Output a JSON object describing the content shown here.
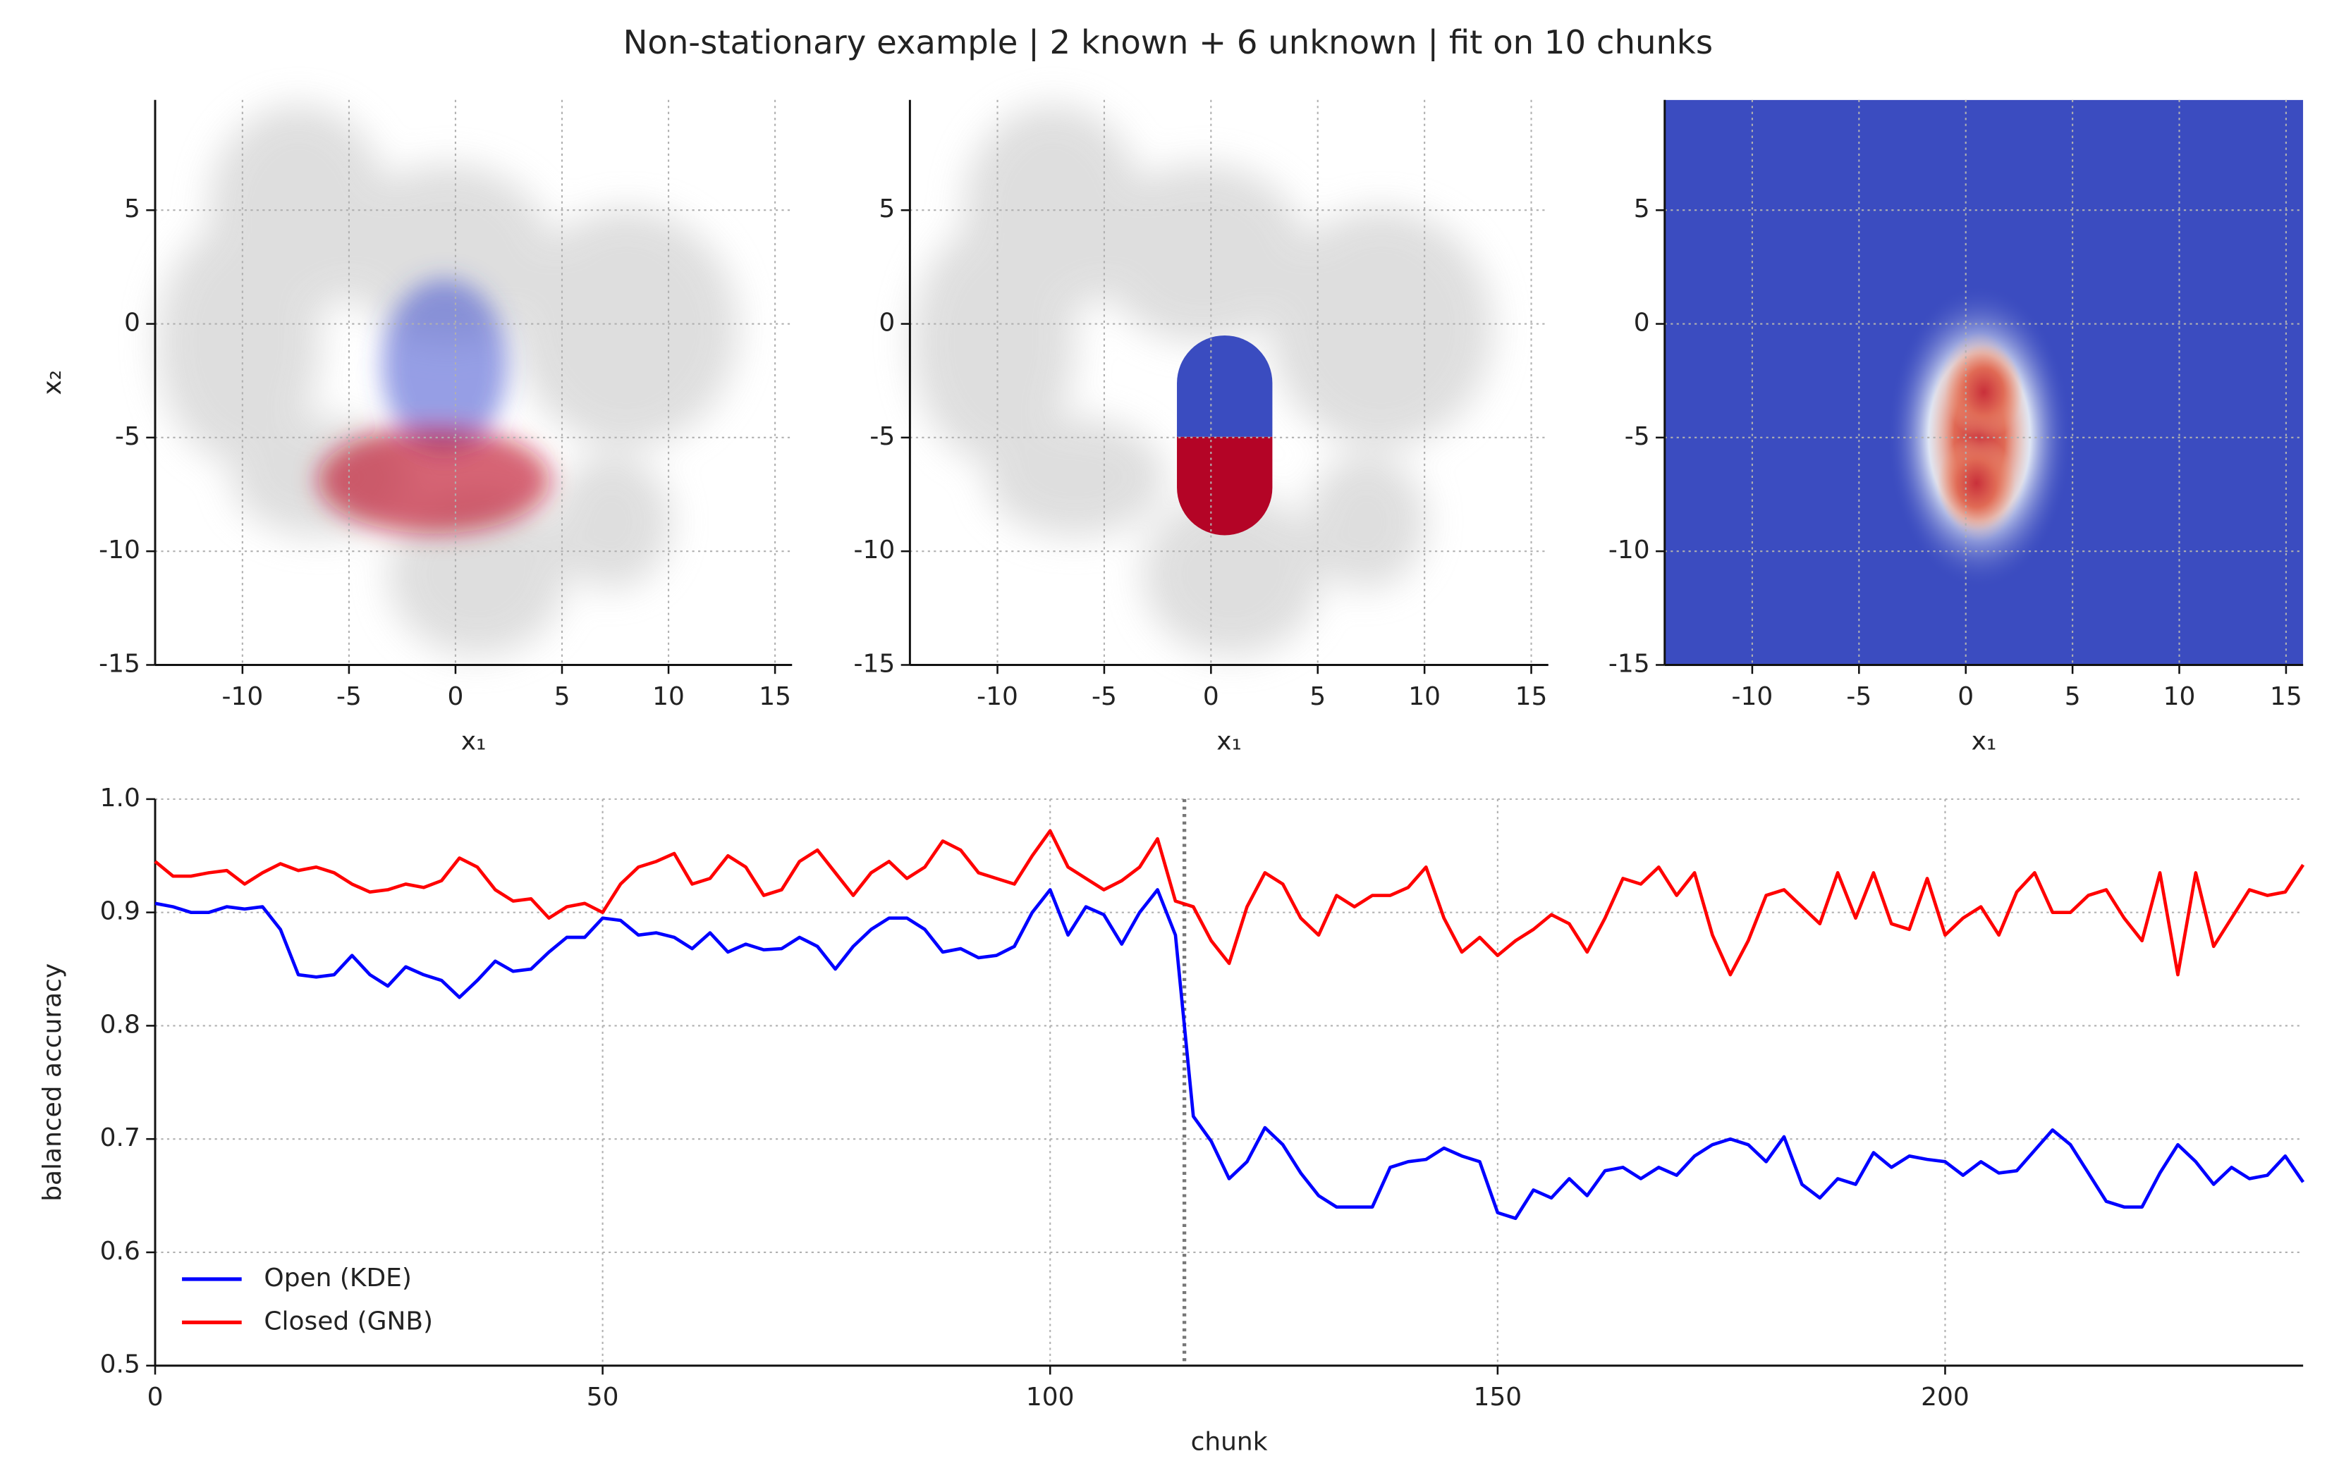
{
  "title": "Non-stationary example | 2 known + 6 unknown | fit on 10 chunks",
  "chart_data": [
    {
      "type": "scatter",
      "xlabel": "x₁",
      "ylabel": "x₂",
      "xlim": [
        -14.1,
        15.8
      ],
      "ylim": [
        -15,
        9.85
      ],
      "xticks": [
        -10,
        -5,
        0,
        5,
        10,
        15
      ],
      "yticks": [
        -15,
        -10,
        -5,
        0,
        5
      ],
      "grid": true
    },
    {
      "type": "scatter",
      "xlabel": "x₁",
      "xlim": [
        -14.1,
        15.8
      ],
      "ylim": [
        -15,
        9.85
      ],
      "xticks": [
        -10,
        -5,
        0,
        5,
        10,
        15
      ],
      "yticks": [
        -15,
        -10,
        -5,
        0,
        5
      ],
      "grid": true
    },
    {
      "type": "heatmap",
      "xlabel": "x₁",
      "xlim": [
        -14.1,
        15.8
      ],
      "ylim": [
        -15,
        9.85
      ],
      "xticks": [
        -10,
        -5,
        0,
        5,
        10,
        15
      ],
      "yticks": [
        -15,
        -10,
        -5,
        0,
        5
      ],
      "grid": true
    },
    {
      "type": "line",
      "xlabel": "chunk",
      "ylabel": "balanced accuracy",
      "xlim": [
        0,
        240
      ],
      "ylim": [
        0.5,
        1.0
      ],
      "xticks": [
        0,
        50,
        100,
        150,
        200
      ],
      "yticks": [
        0.5,
        0.6,
        0.7,
        0.8,
        0.9,
        {
          "value": 1.0,
          "label": "1.0"
        }
      ],
      "grid": true,
      "legend": "lower left",
      "vlines": [
        115
      ],
      "x": [
        0,
        2,
        4,
        6,
        8,
        10,
        12,
        14,
        16,
        18,
        20,
        22,
        24,
        26,
        28,
        30,
        32,
        34,
        36,
        38,
        40,
        42,
        44,
        46,
        48,
        50,
        52,
        54,
        56,
        58,
        60,
        62,
        64,
        66,
        68,
        70,
        72,
        74,
        76,
        78,
        80,
        82,
        84,
        86,
        88,
        90,
        92,
        94,
        96,
        98,
        100,
        102,
        104,
        106,
        108,
        110,
        112,
        114,
        116,
        118,
        120,
        122,
        124,
        126,
        128,
        130,
        132,
        134,
        136,
        138,
        140,
        142,
        144,
        146,
        148,
        150,
        152,
        154,
        156,
        158,
        160,
        162,
        164,
        166,
        168,
        170,
        172,
        174,
        176,
        178,
        180,
        182,
        184,
        186,
        188,
        190,
        192,
        194,
        196,
        198,
        200,
        202,
        204,
        206,
        208,
        210,
        212,
        214,
        216,
        218,
        220,
        222,
        224,
        226,
        228,
        230,
        232,
        234,
        236,
        238,
        240
      ],
      "series": [
        {
          "name": "Open (KDE)",
          "color": "#0000ff",
          "values": [
            0.908,
            0.905,
            0.9,
            0.9,
            0.905,
            0.903,
            0.905,
            0.885,
            0.845,
            0.843,
            0.845,
            0.862,
            0.845,
            0.835,
            0.852,
            0.845,
            0.84,
            0.825,
            0.84,
            0.857,
            0.848,
            0.85,
            0.865,
            0.878,
            0.878,
            0.895,
            0.893,
            0.88,
            0.882,
            0.878,
            0.868,
            0.882,
            0.865,
            0.872,
            0.867,
            0.868,
            0.878,
            0.87,
            0.85,
            0.87,
            0.885,
            0.895,
            0.895,
            0.885,
            0.865,
            0.868,
            0.86,
            0.862,
            0.87,
            0.9,
            0.92,
            0.88,
            0.905,
            0.898,
            0.872,
            0.9,
            0.92,
            0.88,
            0.72,
            0.698,
            0.665,
            0.68,
            0.71,
            0.695,
            0.67,
            0.65,
            0.64,
            0.64,
            0.64,
            0.675,
            0.68,
            0.682,
            0.692,
            0.685,
            0.68,
            0.635,
            0.63,
            0.655,
            0.648,
            0.665,
            0.65,
            0.672,
            0.675,
            0.665,
            0.675,
            0.668,
            0.685,
            0.695,
            0.7,
            0.695,
            0.68,
            0.702,
            0.66,
            0.648,
            0.665,
            0.66,
            0.688,
            0.675,
            0.685,
            0.682,
            0.68,
            0.668,
            0.68,
            0.67,
            0.672,
            0.69,
            0.708,
            0.695,
            0.67,
            0.645,
            0.64,
            0.64,
            0.67,
            0.695,
            0.68,
            0.66,
            0.675,
            0.665,
            0.668,
            0.685,
            0.662
          ]
        },
        {
          "name": "Closed (GNB)",
          "color": "#ff0000",
          "values": [
            0.945,
            0.932,
            0.932,
            0.935,
            0.937,
            0.925,
            0.935,
            0.943,
            0.937,
            0.94,
            0.935,
            0.925,
            0.918,
            0.92,
            0.925,
            0.922,
            0.928,
            0.948,
            0.94,
            0.92,
            0.91,
            0.912,
            0.895,
            0.905,
            0.908,
            0.9,
            0.925,
            0.94,
            0.945,
            0.952,
            0.925,
            0.93,
            0.95,
            0.94,
            0.915,
            0.92,
            0.945,
            0.955,
            0.935,
            0.915,
            0.935,
            0.945,
            0.93,
            0.94,
            0.963,
            0.955,
            0.935,
            0.93,
            0.925,
            0.95,
            0.972,
            0.94,
            0.93,
            0.92,
            0.928,
            0.94,
            0.965,
            0.91,
            0.905,
            0.875,
            0.855,
            0.905,
            0.935,
            0.925,
            0.895,
            0.88,
            0.915,
            0.905,
            0.915,
            0.915,
            0.922,
            0.94,
            0.895,
            0.865,
            0.878,
            0.862,
            0.875,
            0.885,
            0.898,
            0.89,
            0.865,
            0.895,
            0.93,
            0.925,
            0.94,
            0.915,
            0.935,
            0.88,
            0.845,
            0.875,
            0.915,
            0.92,
            0.905,
            0.89,
            0.935,
            0.895,
            0.935,
            0.89,
            0.885,
            0.93,
            0.88,
            0.895,
            0.905,
            0.88,
            0.918,
            0.935,
            0.9,
            0.9,
            0.915,
            0.92,
            0.895,
            0.875,
            0.935,
            0.845,
            0.935,
            0.87,
            0.895,
            0.92,
            0.915,
            0.918,
            0.942
          ]
        }
      ]
    }
  ]
}
